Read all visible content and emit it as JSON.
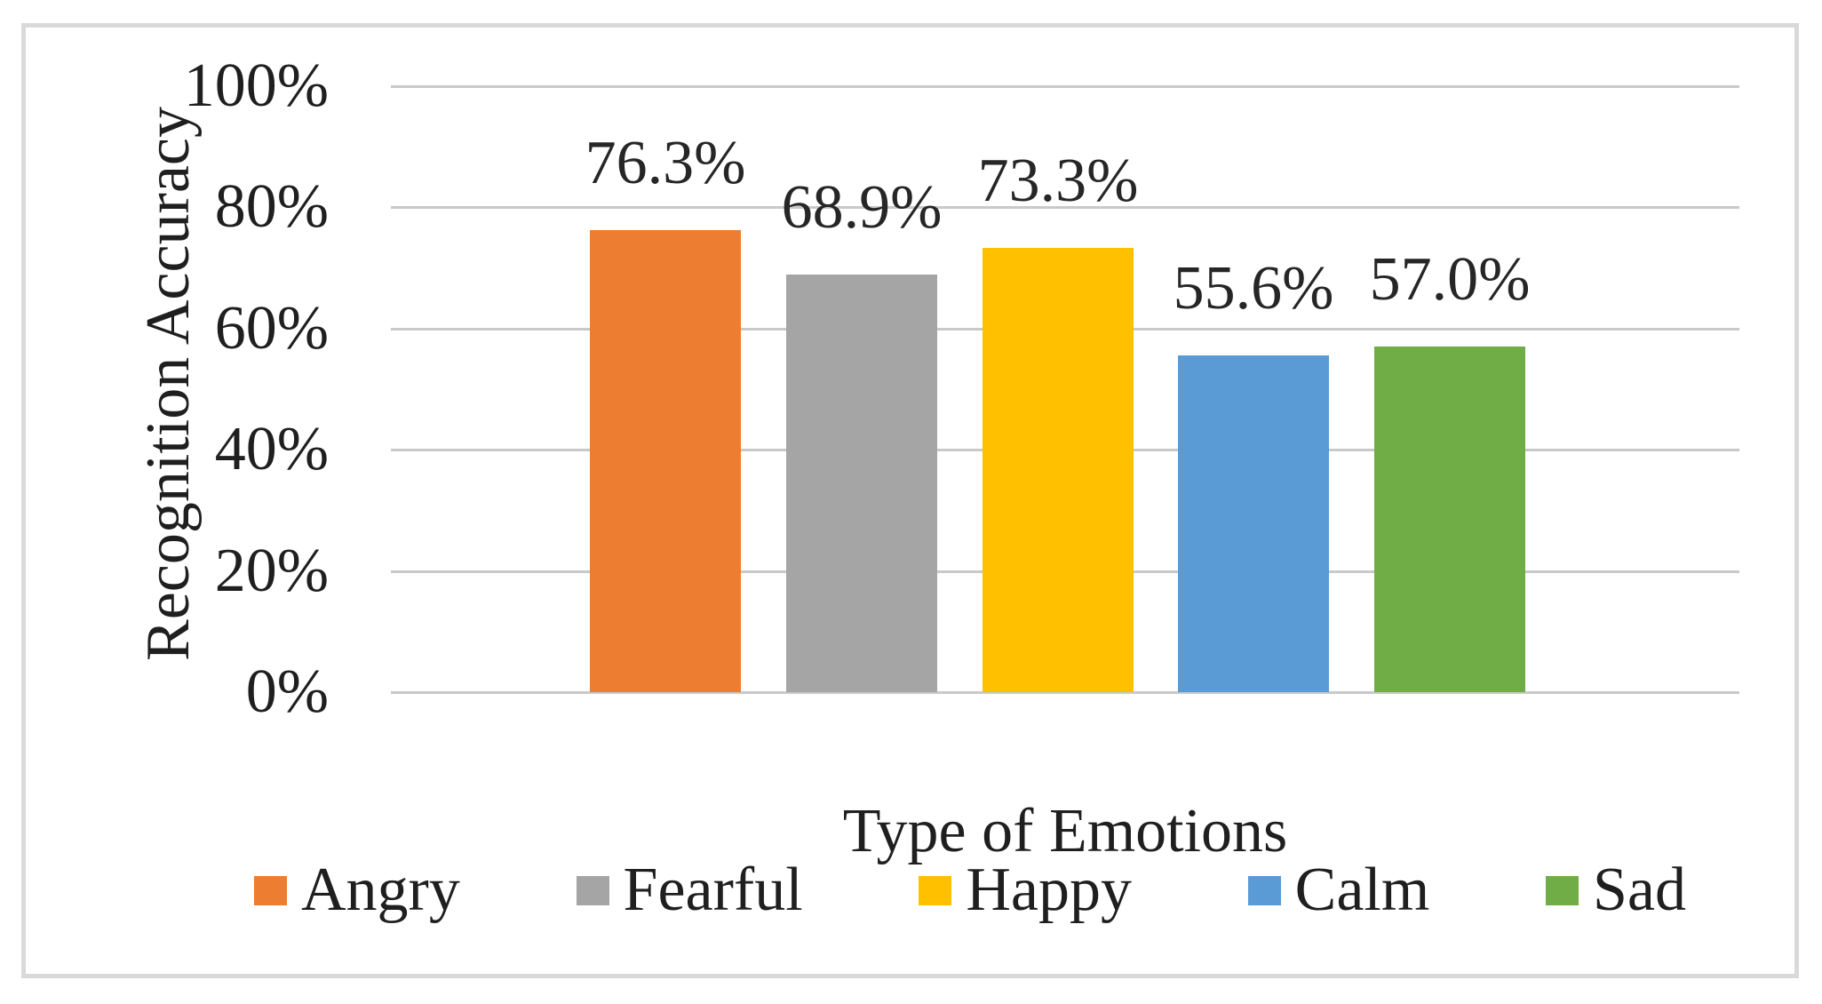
{
  "chart_data": {
    "type": "bar",
    "title": "",
    "categories": [
      "Angry",
      "Fearful",
      "Happy",
      "Calm",
      "Sad"
    ],
    "values": [
      76.3,
      68.9,
      73.3,
      55.6,
      57.0
    ],
    "value_labels": [
      "76.3%",
      "68.9%",
      "73.3%",
      "55.6%",
      "57.0%"
    ],
    "bar_colors": [
      "#ED7D31",
      "#A5A5A5",
      "#FFC000",
      "#5B9BD5",
      "#70AD47"
    ],
    "xlabel": "Type of Emotions",
    "ylabel": "Recognition Accuracy",
    "ylim": [
      0,
      100
    ],
    "ytick_values": [
      100,
      80,
      60,
      40,
      20,
      0
    ],
    "ytick_labels": [
      "100%",
      "80%",
      "60%",
      "40%",
      "20%",
      "0%"
    ],
    "grid": true,
    "gridline_color": "#c9c9c9",
    "frame_border_color": "#d9d9d9",
    "legend_position": "bottom",
    "legend": [
      {
        "label": "Angry",
        "color": "#ED7D31"
      },
      {
        "label": "Fearful",
        "color": "#A5A5A5"
      },
      {
        "label": "Happy",
        "color": "#FFC000"
      },
      {
        "label": "Calm",
        "color": "#5B9BD5"
      },
      {
        "label": "Sad",
        "color": "#70AD47"
      }
    ]
  }
}
